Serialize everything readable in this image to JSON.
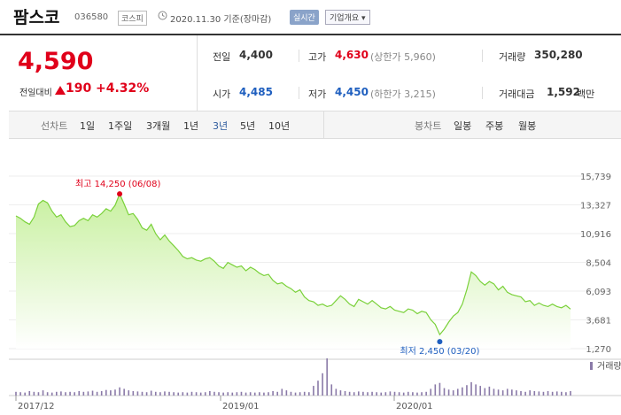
{
  "header": {
    "company_name": "팜스코",
    "company_code": "036580",
    "market": "코스피",
    "base_date": "2020.11.30 기준(장마감)",
    "realtime_label": "실시간",
    "company_info_label": "기업개요 ▾"
  },
  "summary": {
    "current_price": "4,590",
    "change_label": "전일대비",
    "change_value": "190",
    "change_rate": "+4.32%",
    "prev_close_label": "전일",
    "prev_close": "4,400",
    "open_label": "시가",
    "open": "4,485",
    "high_label": "고가",
    "high": "4,630",
    "upper_limit": "(상한가 5,960)",
    "low_label": "저가",
    "low": "4,450",
    "lower_limit": "(하한가 3,215)",
    "volume_label": "거래량",
    "volume": "350,280",
    "amount_label": "거래대금",
    "amount": "1,592",
    "amount_unit": "백만"
  },
  "periods": {
    "line_title": "선차트",
    "line_items": [
      "1일",
      "1주일",
      "3개월",
      "1년",
      "3년",
      "5년",
      "10년"
    ],
    "active": "3년",
    "candle_title": "봉차트",
    "candle_items": [
      "일봉",
      "주봉",
      "월봉"
    ]
  },
  "colors": {
    "up": "#e0001a",
    "down": "#1f5fbf",
    "line": "#7ad13a",
    "fill": "#c8f0a0",
    "volume": "#8a7aa8"
  },
  "chart_data": {
    "type": "area",
    "y_ticks": [
      "15,739",
      "13,327",
      "10,916",
      "8,504",
      "6,093",
      "3,681",
      "1,270"
    ],
    "ylim": [
      1270,
      15739
    ],
    "x_tick_labels": [
      "2017/12",
      "2019/01",
      "2020/01"
    ],
    "volume_label": "거래량",
    "max_annotation": "최고 14,250 (06/08)",
    "min_annotation": "최저 2,450 (03/20)",
    "max_value": 14250,
    "min_value": 2450,
    "series": [
      {
        "values": [
          12400,
          12200,
          11900,
          11700,
          12300,
          13400,
          13700,
          13500,
          12800,
          12300,
          12500,
          11900,
          11500,
          11600,
          12000,
          12200,
          12000,
          12500,
          12300,
          12600,
          13000,
          12800,
          13300,
          14250,
          13400,
          12500,
          12600,
          12100,
          11400,
          11200,
          11700,
          10900,
          10400,
          10800,
          10300,
          9900,
          9500,
          9000,
          8800,
          8900,
          8700,
          8600,
          8800,
          8900,
          8600,
          8200,
          8000,
          8500,
          8300,
          8100,
          8200,
          7800,
          8100,
          7900,
          7600,
          7400,
          7500,
          7000,
          6700,
          6800,
          6500,
          6300,
          6000,
          6200,
          5600,
          5300,
          5200,
          4900,
          5000,
          4800,
          4900,
          5300,
          5700,
          5400,
          5000,
          4800,
          5400,
          5200,
          5000,
          5300,
          5000,
          4700,
          4600,
          4800,
          4500,
          4400,
          4300,
          4600,
          4500,
          4200,
          4400,
          4300,
          3700,
          3300,
          2450,
          2900,
          3500,
          4000,
          4300,
          5000,
          6200,
          7700,
          7400,
          6900,
          6600,
          6900,
          6700,
          6200,
          6500,
          6000,
          5800,
          5700,
          5600,
          5200,
          5300,
          4900,
          5100,
          4900,
          4800,
          5000,
          4800,
          4700,
          4900,
          4590
        ]
      }
    ],
    "volume": [
      10,
      9,
      8,
      12,
      10,
      9,
      14,
      9,
      8,
      10,
      11,
      9,
      10,
      9,
      12,
      10,
      11,
      13,
      10,
      12,
      15,
      14,
      16,
      22,
      18,
      14,
      12,
      11,
      10,
      9,
      13,
      10,
      9,
      11,
      10,
      9,
      8,
      9,
      8,
      10,
      9,
      8,
      9,
      12,
      10,
      9,
      8,
      9,
      8,
      9,
      10,
      8,
      9,
      8,
      9,
      8,
      9,
      12,
      10,
      18,
      14,
      10,
      8,
      9,
      10,
      9,
      26,
      40,
      60,
      100,
      30,
      18,
      14,
      12,
      10,
      9,
      11,
      10,
      9,
      10,
      9,
      8,
      9,
      11,
      10,
      9,
      8,
      10,
      9,
      8,
      9,
      10,
      18,
      30,
      34,
      20,
      16,
      14,
      18,
      22,
      28,
      36,
      30,
      26,
      20,
      24,
      18,
      16,
      14,
      18,
      16,
      14,
      12,
      10,
      14,
      12,
      11,
      10,
      12,
      10,
      11,
      10,
      9,
      12
    ]
  }
}
